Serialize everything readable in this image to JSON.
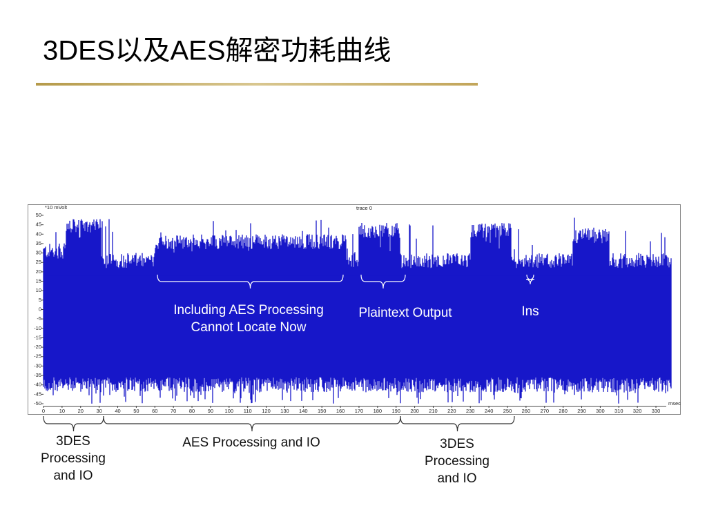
{
  "title": "3DES以及AES解密功耗曲线",
  "figure": {
    "y_unit": "*10 mVolt",
    "trace_label": "trace 0",
    "x_unit": "msec",
    "yticks": [
      "50",
      "45",
      "40",
      "35",
      "30",
      "25",
      "20",
      "15",
      "10",
      "5",
      "0",
      "-5",
      "-10",
      "-15",
      "-20",
      "-25",
      "-30",
      "-35",
      "-40",
      "-45",
      "-50"
    ],
    "xticks": [
      "0",
      "10",
      "20",
      "30",
      "40",
      "50",
      "60",
      "70",
      "80",
      "90",
      "100",
      "110",
      "120",
      "130",
      "140",
      "150",
      "160",
      "170",
      "180",
      "190",
      "200",
      "210",
      "220",
      "230",
      "240",
      "250",
      "260",
      "270",
      "280",
      "290",
      "300",
      "310",
      "320",
      "330"
    ],
    "inner_notes": [
      {
        "lines": [
          "Including AES Processing",
          "Cannot Locate Now"
        ]
      },
      {
        "lines": [
          "Plaintext Output"
        ]
      },
      {
        "lines": [
          "Ins"
        ]
      }
    ],
    "phases": [
      {
        "lines": [
          "3DES",
          "Processing",
          "and IO"
        ]
      },
      {
        "lines": [
          "AES Processing and IO"
        ]
      },
      {
        "lines": [
          "3DES",
          "Processing",
          "and IO"
        ]
      }
    ]
  }
}
